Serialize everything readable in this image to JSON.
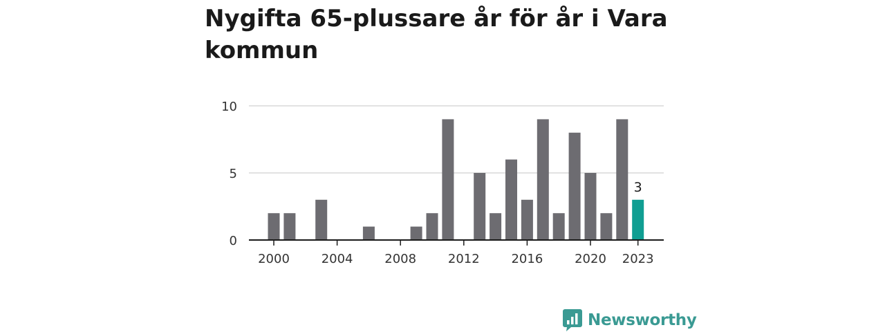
{
  "header": {
    "title": "Nygifta 65-plussare år för år i Vara kommun"
  },
  "brand": {
    "name": "Newsworthy",
    "icon": "newsworthy-logo-icon"
  },
  "colors": {
    "bar": "#6d6c71",
    "highlight": "#109e92",
    "grid": "#d8d8d8",
    "axis": "#1a1a1a",
    "brand": "#3a9a93"
  },
  "chart_data": {
    "type": "bar",
    "title": "Nygifta 65-plussare år för år i Vara kommun",
    "xlabel": "",
    "ylabel": "",
    "categories": [
      2000,
      2001,
      2002,
      2003,
      2004,
      2005,
      2006,
      2007,
      2008,
      2009,
      2010,
      2011,
      2012,
      2013,
      2014,
      2015,
      2016,
      2017,
      2018,
      2019,
      2020,
      2021,
      2022,
      2023
    ],
    "values": [
      2,
      2,
      0,
      3,
      0,
      0,
      1,
      0,
      0,
      1,
      2,
      9,
      0,
      5,
      2,
      6,
      3,
      9,
      2,
      8,
      5,
      2,
      9,
      3
    ],
    "ylim": [
      0,
      10
    ],
    "yticks": [
      0,
      5,
      10
    ],
    "xticks": [
      2000,
      2004,
      2008,
      2012,
      2016,
      2020,
      2023
    ],
    "highlight": {
      "category": 2023,
      "label": "3"
    },
    "grid": true,
    "legend": "none"
  }
}
